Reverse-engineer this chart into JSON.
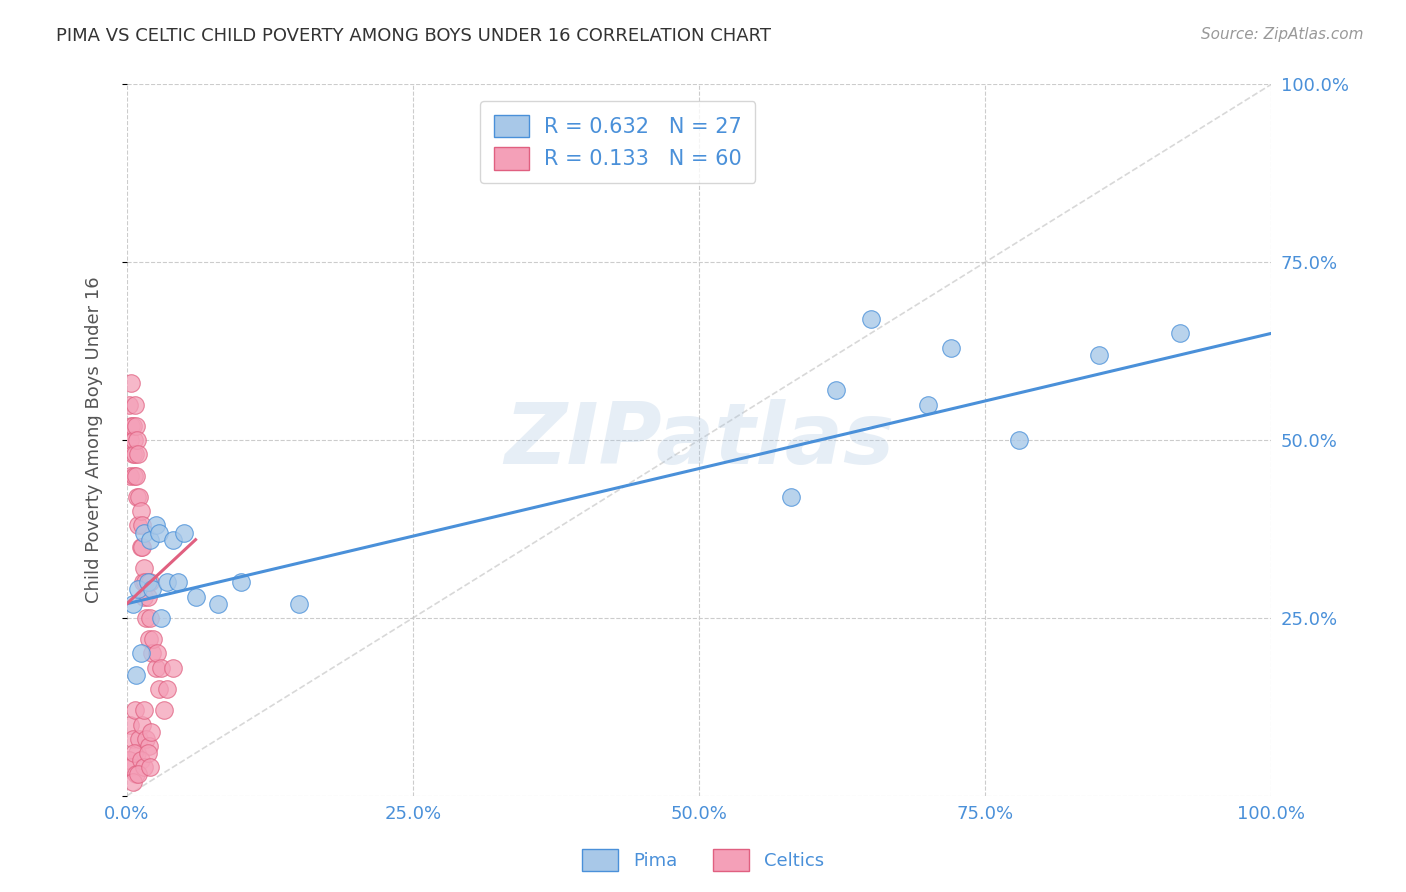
{
  "title": "PIMA VS CELTIC CHILD POVERTY AMONG BOYS UNDER 16 CORRELATION CHART",
  "source": "Source: ZipAtlas.com",
  "ylabel": "Child Poverty Among Boys Under 16",
  "watermark": "ZIPatlas",
  "pima_R": 0.632,
  "pima_N": 27,
  "celtics_R": 0.133,
  "celtics_N": 60,
  "pima_color": "#a8c8e8",
  "pima_line_color": "#4a90d9",
  "celtics_color": "#f4a0b8",
  "celtics_line_color": "#e06080",
  "diag_color": "#c8c8c8",
  "axis_label_color": "#4a90d9",
  "grid_color": "#cccccc",
  "xlim": [
    0.0,
    1.0
  ],
  "ylim": [
    0.0,
    1.0
  ],
  "pima_scatter_x": [
    0.005,
    0.008,
    0.01,
    0.012,
    0.015,
    0.018,
    0.02,
    0.022,
    0.025,
    0.028,
    0.03,
    0.035,
    0.04,
    0.045,
    0.05,
    0.06,
    0.08,
    0.1,
    0.15,
    0.58,
    0.62,
    0.65,
    0.7,
    0.72,
    0.78,
    0.85,
    0.92
  ],
  "pima_scatter_y": [
    0.27,
    0.17,
    0.29,
    0.2,
    0.37,
    0.3,
    0.36,
    0.29,
    0.38,
    0.37,
    0.25,
    0.3,
    0.36,
    0.3,
    0.37,
    0.28,
    0.27,
    0.3,
    0.27,
    0.42,
    0.57,
    0.67,
    0.55,
    0.63,
    0.5,
    0.62,
    0.65
  ],
  "celtics_scatter_x": [
    0.002,
    0.003,
    0.003,
    0.004,
    0.004,
    0.005,
    0.005,
    0.006,
    0.006,
    0.007,
    0.007,
    0.008,
    0.008,
    0.009,
    0.009,
    0.01,
    0.01,
    0.011,
    0.012,
    0.012,
    0.013,
    0.013,
    0.014,
    0.015,
    0.015,
    0.016,
    0.017,
    0.018,
    0.019,
    0.02,
    0.02,
    0.022,
    0.023,
    0.025,
    0.026,
    0.028,
    0.03,
    0.032,
    0.035,
    0.04,
    0.003,
    0.005,
    0.007,
    0.009,
    0.011,
    0.013,
    0.015,
    0.017,
    0.019,
    0.021,
    0.002,
    0.004,
    0.006,
    0.008,
    0.012,
    0.015,
    0.018,
    0.005,
    0.01,
    0.02
  ],
  "celtics_scatter_y": [
    0.55,
    0.5,
    0.45,
    0.52,
    0.58,
    0.48,
    0.52,
    0.45,
    0.5,
    0.55,
    0.48,
    0.52,
    0.45,
    0.5,
    0.42,
    0.48,
    0.38,
    0.42,
    0.35,
    0.4,
    0.35,
    0.38,
    0.3,
    0.32,
    0.28,
    0.3,
    0.25,
    0.28,
    0.22,
    0.25,
    0.3,
    0.2,
    0.22,
    0.18,
    0.2,
    0.15,
    0.18,
    0.12,
    0.15,
    0.18,
    0.1,
    0.08,
    0.12,
    0.06,
    0.08,
    0.1,
    0.12,
    0.08,
    0.07,
    0.09,
    0.05,
    0.04,
    0.06,
    0.03,
    0.05,
    0.04,
    0.06,
    0.02,
    0.03,
    0.04
  ],
  "pima_trendline_x": [
    0.0,
    1.0
  ],
  "pima_trendline_y": [
    0.27,
    0.65
  ],
  "celtics_trendline_x": [
    0.0,
    0.06
  ],
  "celtics_trendline_y": [
    0.27,
    0.36
  ]
}
